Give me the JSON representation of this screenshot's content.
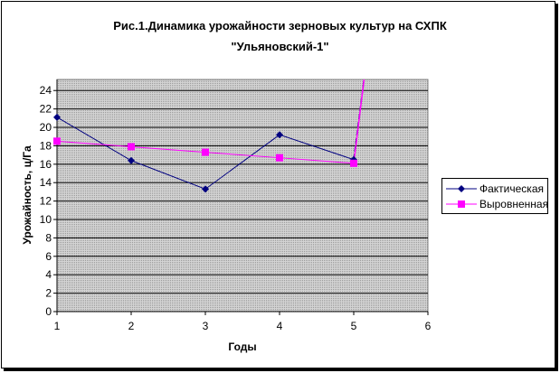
{
  "chart_data": {
    "type": "line",
    "title_line1": "Рис.1.Динамика урожайности зерновых культур на СХПК",
    "title_line2": "\"Ульяновский-1\"",
    "xlabel": "Годы",
    "ylabel": "Урожайность, ц/Га",
    "x": [
      1,
      2,
      3,
      4,
      5
    ],
    "xlim": [
      1,
      6
    ],
    "xticks": [
      "1",
      "2",
      "3",
      "4",
      "5",
      "6"
    ],
    "ylim": [
      0,
      25.2
    ],
    "yticks": [
      "0",
      "2",
      "4",
      "6",
      "8",
      "10",
      "12",
      "14",
      "16",
      "18",
      "20",
      "22",
      "24"
    ],
    "grid": true,
    "legend_position": "right",
    "plot_background": "#c0c0c0",
    "series": [
      {
        "name": "Фактическая",
        "values": [
          21.1,
          16.4,
          13.3,
          19.2,
          16.5
        ],
        "color": "#000080",
        "marker": "diamond"
      },
      {
        "name": "Выровненная",
        "values": [
          18.5,
          17.9,
          17.3,
          16.7,
          16.1
        ],
        "color": "#ff00ff",
        "marker": "square"
      }
    ]
  }
}
